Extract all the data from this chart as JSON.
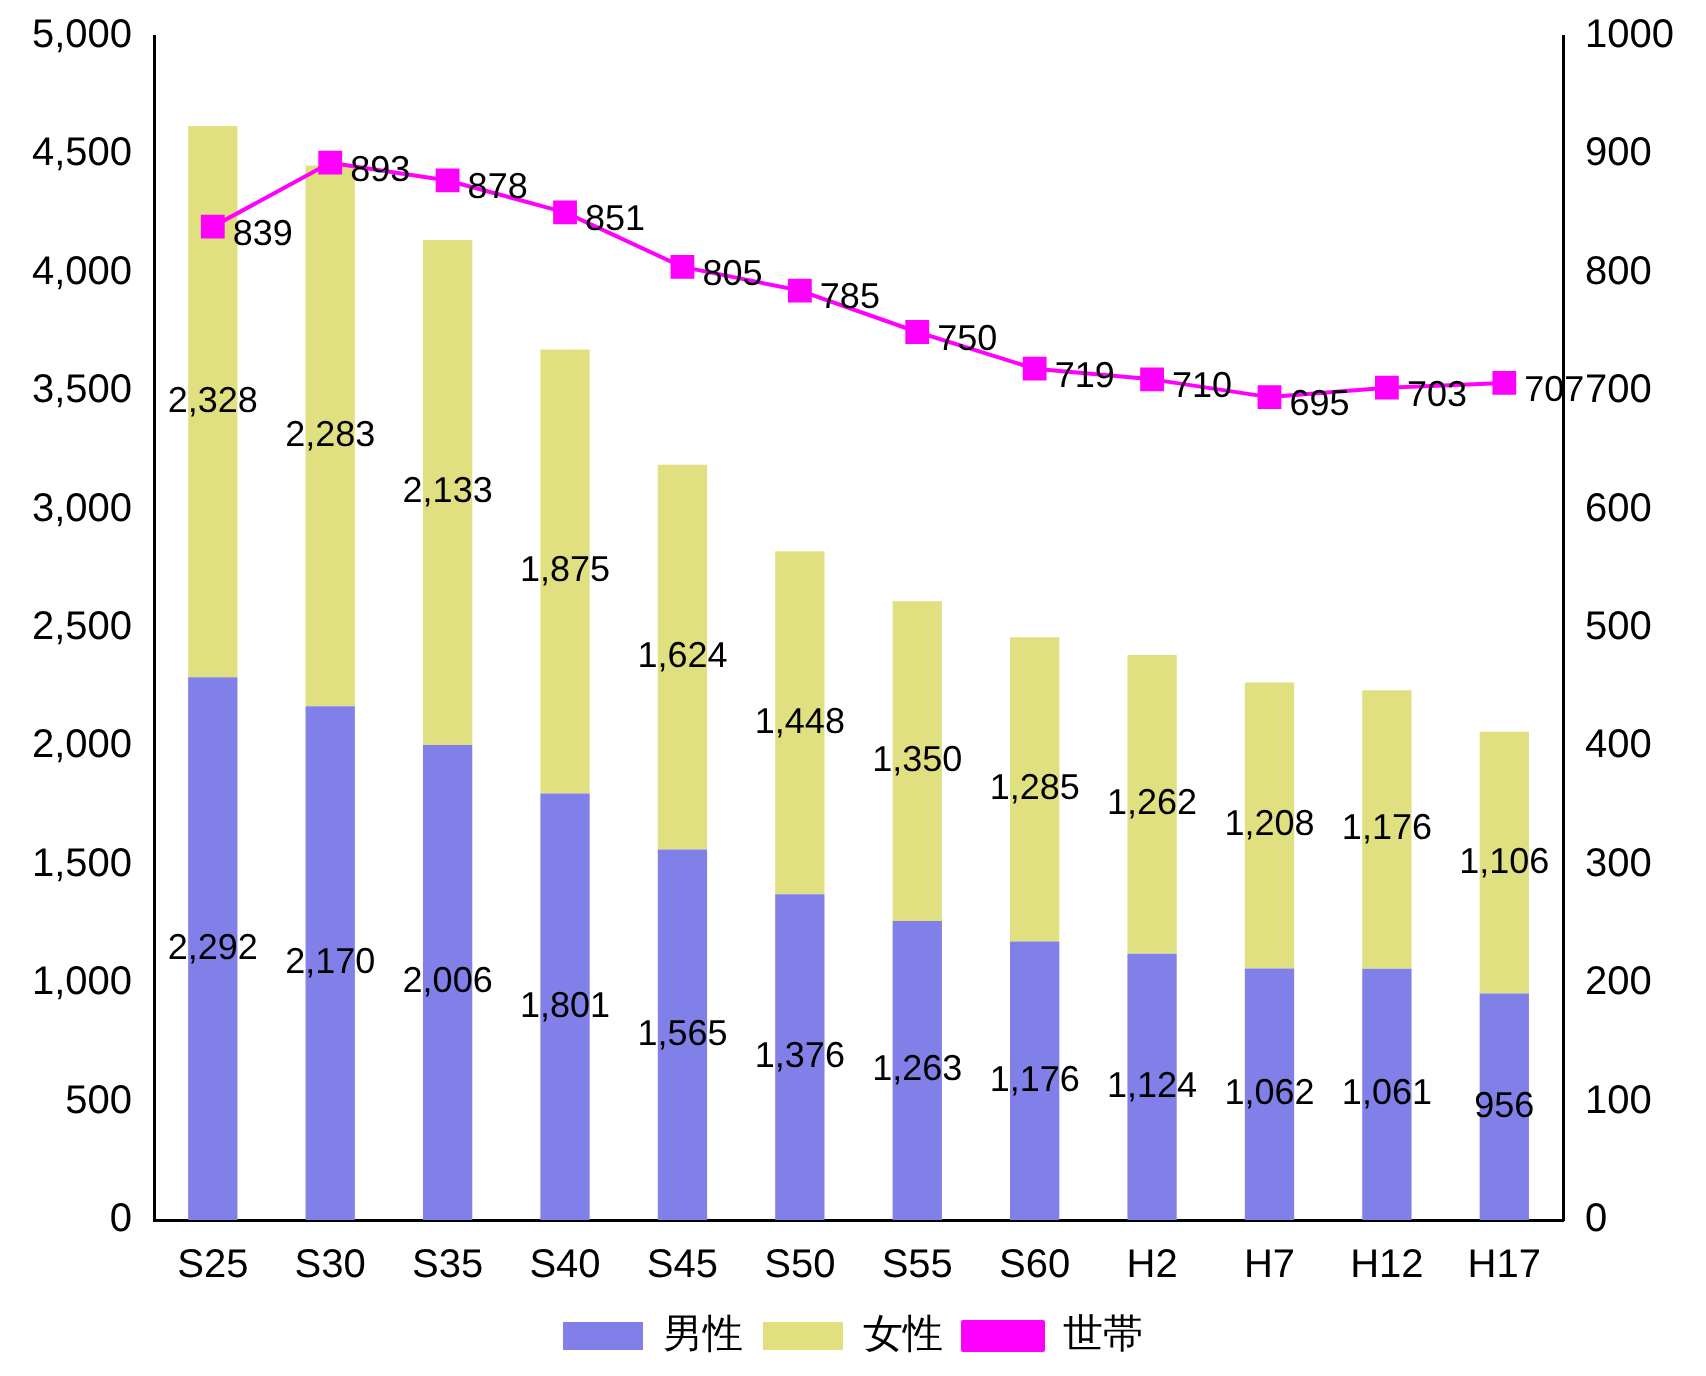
{
  "chart_data": {
    "type": "bar",
    "stacked": true,
    "categories": [
      "S25",
      "S30",
      "S35",
      "S40",
      "S45",
      "S50",
      "S55",
      "S60",
      "H2",
      "H7",
      "H12",
      "H17"
    ],
    "series": [
      {
        "name": "男性",
        "color": "#8080e8",
        "values": [
          2292,
          2170,
          2006,
          1801,
          1565,
          1376,
          1263,
          1176,
          1124,
          1062,
          1061,
          956
        ],
        "value_labels": [
          "2,292",
          "2,170",
          "2,006",
          "1,801",
          "1,565",
          "1,376",
          "1,263",
          "1,176",
          "1,124",
          "1,062",
          "1,061",
          "956"
        ]
      },
      {
        "name": "女性",
        "color": "#e0e080",
        "values": [
          2328,
          2283,
          2133,
          1875,
          1624,
          1448,
          1350,
          1285,
          1262,
          1208,
          1176,
          1106
        ],
        "value_labels": [
          "2,328",
          "2,283",
          "2,133",
          "1,875",
          "1,624",
          "1,448",
          "1,350",
          "1,285",
          "1,262",
          "1,208",
          "1,176",
          "1,106"
        ]
      },
      {
        "name": "世帯",
        "type": "line",
        "axis": "y2",
        "color": "#ff00ff",
        "marker": "square",
        "values": [
          839,
          893,
          878,
          851,
          805,
          785,
          750,
          719,
          710,
          695,
          703,
          707
        ],
        "value_labels": [
          "839",
          "893",
          "878",
          "851",
          "805",
          "785",
          "750",
          "719",
          "710",
          "695",
          "703",
          "707"
        ]
      }
    ],
    "ylim": [
      0,
      5000
    ],
    "yticks": [
      0,
      500,
      {
        "value": 1000,
        "label": "1,000"
      },
      {
        "value": 1500,
        "label": "1,500"
      },
      {
        "value": 2000,
        "label": "2,000"
      },
      {
        "value": 2500,
        "label": "2,500"
      },
      {
        "value": 3000,
        "label": "3,000"
      },
      {
        "value": 3500,
        "label": "3,500"
      },
      {
        "value": 4000,
        "label": "4,000"
      },
      {
        "value": 4500,
        "label": "4,500"
      },
      {
        "value": 5000,
        "label": "5,000"
      }
    ],
    "y2lim": [
      0,
      1000
    ],
    "y2ticks": [
      0,
      100,
      200,
      300,
      400,
      500,
      600,
      700,
      800,
      900,
      1000
    ],
    "grid": false,
    "legend": "bottom"
  }
}
